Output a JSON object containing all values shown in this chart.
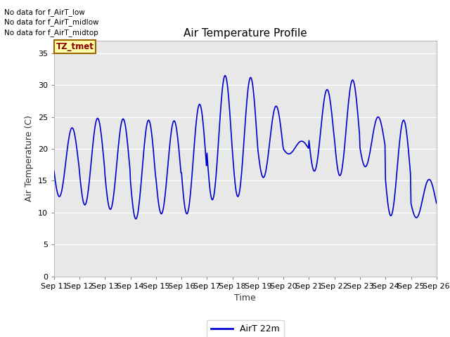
{
  "title": "Air Temperature Profile",
  "xlabel": "Time",
  "ylabel": "Air Temperature (C)",
  "ylim": [
    0,
    37
  ],
  "yticks": [
    0,
    5,
    10,
    15,
    20,
    25,
    30,
    35
  ],
  "line_color": "#0000cc",
  "line_width": 1.2,
  "bg_color": "#e8e8e8",
  "grid_color": "white",
  "legend_label": "AirT 22m",
  "no_data_texts": [
    "No data for f_AirT_low",
    "No data for f_AirT_midlow",
    "No data for f_AirT_midtop"
  ],
  "tz_label": "TZ_tmet",
  "x_tick_labels": [
    "Sep 11",
    "Sep 12",
    "Sep 13",
    "Sep 14",
    "Sep 15",
    "Sep 16",
    "Sep 17",
    "Sep 18",
    "Sep 19",
    "Sep 20",
    "Sep 21",
    "Sep 22",
    "Sep 23",
    "Sep 24",
    "Sep 25",
    "Sep 26"
  ],
  "day_mins": [
    12.5,
    11.2,
    10.5,
    9.0,
    9.8,
    9.8,
    12.0,
    12.5,
    15.5,
    19.2,
    16.5,
    15.8,
    17.2,
    9.5,
    9.2
  ],
  "day_maxs": [
    23.3,
    24.8,
    24.7,
    24.5,
    24.4,
    27.0,
    31.5,
    31.2,
    26.7,
    21.2,
    29.3,
    30.8,
    25.0,
    24.5,
    15.2
  ],
  "day_min_phase": [
    0.22,
    0.22,
    0.22,
    0.22,
    0.22,
    0.22,
    0.22,
    0.22,
    0.22,
    0.22,
    0.22,
    0.22,
    0.22,
    0.22,
    0.22
  ],
  "points_per_day": 48
}
